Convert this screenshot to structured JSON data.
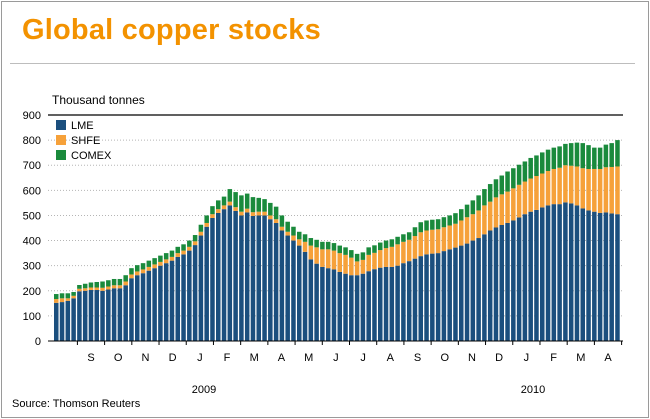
{
  "title": "Global copper stocks",
  "source": "Source: Thomson Reuters",
  "colors": {
    "title": "#f39200",
    "LME": "#1b4f7e",
    "SHFE": "#f6a13a",
    "COMEX": "#1a8a3c"
  },
  "chart_data": {
    "type": "bar",
    "stacked": true,
    "unit_label": "Thousand tonnes",
    "ylim": [
      0,
      900
    ],
    "yticks": [
      0,
      100,
      200,
      300,
      400,
      500,
      600,
      700,
      800,
      900
    ],
    "grid": true,
    "legend_position": "top-left",
    "month_labels": [
      "S",
      "O",
      "N",
      "D",
      "J",
      "F",
      "M",
      "A",
      "M",
      "J",
      "J",
      "A",
      "S",
      "O",
      "N",
      "D",
      "J",
      "F",
      "M",
      "A"
    ],
    "year_labels": [
      "2009",
      "2010"
    ],
    "series": [
      {
        "name": "LME",
        "values": [
          152,
          155,
          160,
          170,
          198,
          200,
          203,
          203,
          200,
          205,
          210,
          210,
          222,
          250,
          262,
          270,
          280,
          290,
          300,
          310,
          320,
          335,
          345,
          360,
          382,
          420,
          455,
          490,
          510,
          525,
          540,
          518,
          500,
          512,
          498,
          500,
          500,
          485,
          470,
          440,
          420,
          400,
          380,
          355,
          325,
          308,
          295,
          290,
          285,
          275,
          268,
          262,
          262,
          268,
          278,
          286,
          292,
          295,
          295,
          300,
          310,
          318,
          328,
          338,
          345,
          348,
          350,
          358,
          365,
          372,
          380,
          388,
          400,
          410,
          425,
          440,
          452,
          462,
          470,
          480,
          492,
          505,
          515,
          522,
          532,
          540,
          545,
          545,
          552,
          548,
          540,
          528,
          520,
          515,
          510,
          512,
          508,
          505
        ]
      },
      {
        "name": "SHFE",
        "values": [
          15,
          15,
          10,
          10,
          10,
          10,
          10,
          10,
          12,
          12,
          12,
          12,
          15,
          15,
          15,
          15,
          15,
          15,
          15,
          15,
          15,
          15,
          15,
          15,
          15,
          15,
          15,
          15,
          15,
          15,
          15,
          15,
          15,
          15,
          15,
          15,
          15,
          15,
          15,
          15,
          15,
          20,
          25,
          40,
          55,
          65,
          70,
          75,
          75,
          75,
          75,
          70,
          55,
          55,
          65,
          65,
          70,
          75,
          80,
          85,
          85,
          85,
          90,
          95,
          95,
          95,
          95,
          95,
          95,
          95,
          100,
          105,
          105,
          110,
          115,
          115,
          120,
          122,
          125,
          128,
          130,
          130,
          132,
          135,
          135,
          137,
          140,
          145,
          148,
          150,
          155,
          160,
          165,
          170,
          175,
          180,
          185,
          190
        ]
      },
      {
        "name": "COMEX",
        "values": [
          20,
          20,
          20,
          15,
          15,
          18,
          20,
          22,
          25,
          25,
          25,
          25,
          25,
          25,
          25,
          25,
          25,
          25,
          25,
          25,
          25,
          25,
          25,
          25,
          25,
          28,
          30,
          32,
          35,
          35,
          50,
          60,
          65,
          60,
          60,
          55,
          50,
          50,
          50,
          45,
          40,
          35,
          30,
          30,
          30,
          30,
          30,
          30,
          30,
          30,
          30,
          30,
          30,
          30,
          30,
          30,
          30,
          30,
          30,
          30,
          30,
          30,
          35,
          40,
          40,
          40,
          40,
          40,
          40,
          42,
          45,
          50,
          55,
          60,
          65,
          70,
          72,
          75,
          80,
          80,
          80,
          80,
          82,
          82,
          84,
          85,
          85,
          85,
          85,
          90,
          95,
          100,
          95,
          85,
          85,
          90,
          95,
          105
        ]
      }
    ]
  }
}
